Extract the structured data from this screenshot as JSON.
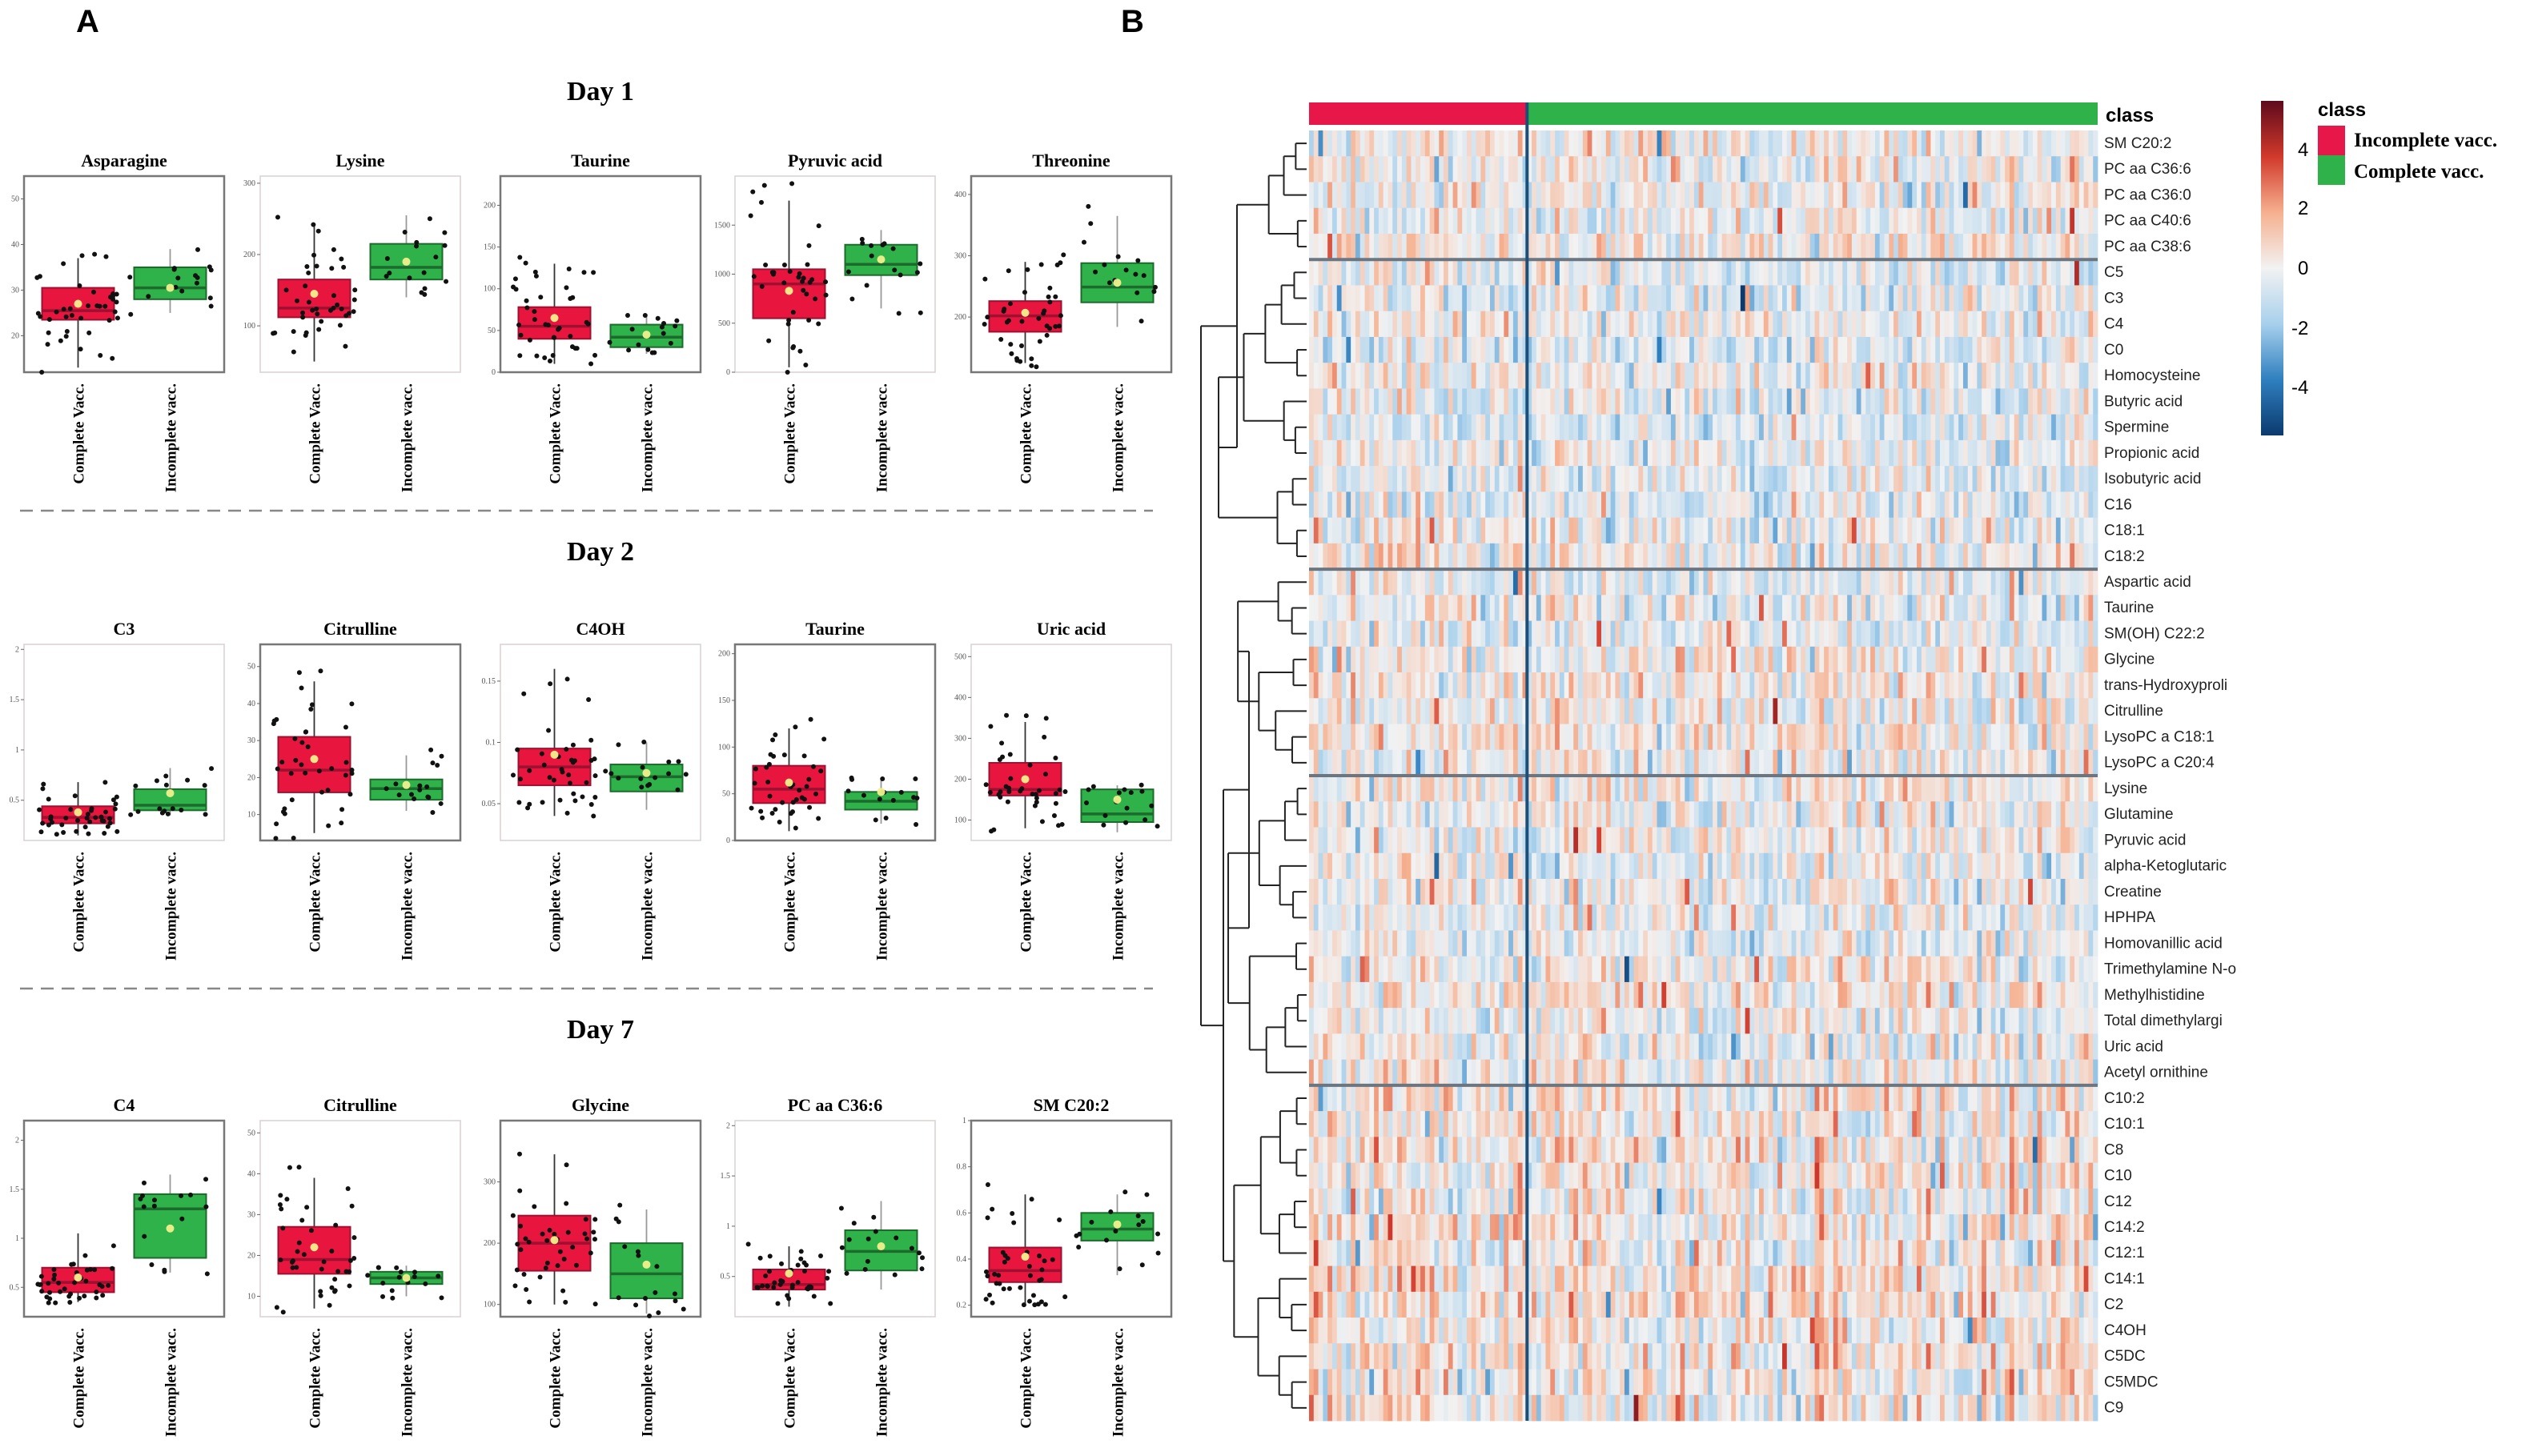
{
  "panel_labels": {
    "a": "A",
    "b": "B"
  },
  "chart_data": [
    {
      "type": "box",
      "panel": "A",
      "categories": [
        "Complete Vacc.",
        "Incomplete vacc."
      ],
      "colors": {
        "complete": "#e8163f",
        "complete_edge": "#9e1030",
        "incomplete": "#2fb24a",
        "incomplete_edge": "#1c6a2c",
        "mean": "#f3f08c",
        "point": "#111111"
      },
      "days": [
        {
          "title": "Day 1",
          "plots": [
            {
              "title": "Asparagine",
              "yticks": [
                20,
                30,
                40,
                50
              ],
              "ylim": [
                12,
                55
              ],
              "complete": {
                "lo": 13,
                "q1": 23.5,
                "median": 25.5,
                "q3": 30.5,
                "hi": 37,
                "mean": 27
              },
              "incomplete": {
                "lo": 25,
                "q1": 28,
                "median": 30.5,
                "q3": 35,
                "hi": 39,
                "mean": 30.5
              }
            },
            {
              "title": "Lysine",
              "yticks": [
                100,
                200,
                300
              ],
              "ylim": [
                35,
                310
              ],
              "complete": {
                "lo": 50,
                "q1": 112,
                "median": 125,
                "q3": 165,
                "hi": 240,
                "mean": 145
              },
              "incomplete": {
                "lo": 140,
                "q1": 165,
                "median": 182,
                "q3": 215,
                "hi": 255,
                "mean": 190
              }
            },
            {
              "title": "Taurine",
              "yticks": [
                0,
                50,
                100,
                150,
                200
              ],
              "ylim": [
                0,
                235
              ],
              "complete": {
                "lo": 10,
                "q1": 40,
                "median": 55,
                "q3": 78,
                "hi": 130,
                "mean": 65
              },
              "incomplete": {
                "lo": 22,
                "q1": 30,
                "median": 42,
                "q3": 57,
                "hi": 70,
                "mean": 45
              }
            },
            {
              "title": "Pyruvic acid",
              "yticks": [
                0,
                500,
                1000,
                1500
              ],
              "ylim": [
                0,
                2000
              ],
              "complete": {
                "lo": 50,
                "q1": 550,
                "median": 900,
                "q3": 1050,
                "hi": 1750,
                "mean": 830
              },
              "incomplete": {
                "lo": 650,
                "q1": 990,
                "median": 1100,
                "q3": 1300,
                "hi": 1450,
                "mean": 1150
              }
            },
            {
              "title": "Threonine",
              "yticks": [
                200,
                300,
                400
              ],
              "ylim": [
                110,
                430
              ],
              "complete": {
                "lo": 125,
                "q1": 176,
                "median": 202,
                "q3": 226,
                "hi": 290,
                "mean": 207
              },
              "incomplete": {
                "lo": 184,
                "q1": 224,
                "median": 249,
                "q3": 288,
                "hi": 365,
                "mean": 256
              }
            }
          ]
        },
        {
          "title": "Day 2",
          "plots": [
            {
              "title": "C3",
              "yticks": [
                0.5,
                1.0,
                1.5,
                2.0
              ],
              "ylim": [
                0.1,
                2.05
              ],
              "complete": {
                "lo": 0.15,
                "q1": 0.27,
                "median": 0.33,
                "q3": 0.44,
                "hi": 0.68,
                "mean": 0.38
              },
              "incomplete": {
                "lo": 0.35,
                "q1": 0.4,
                "median": 0.45,
                "q3": 0.61,
                "hi": 0.82,
                "mean": 0.57
              }
            },
            {
              "title": "Citrulline",
              "yticks": [
                10,
                20,
                30,
                40,
                50
              ],
              "ylim": [
                3,
                56
              ],
              "complete": {
                "lo": 5,
                "q1": 16,
                "median": 22,
                "q3": 31,
                "hi": 46,
                "mean": 25
              },
              "incomplete": {
                "lo": 11,
                "q1": 14,
                "median": 17,
                "q3": 19.5,
                "hi": 26,
                "mean": 18
              }
            },
            {
              "title": "C4OH",
              "yticks": [
                0.05,
                0.1,
                0.15
              ],
              "ylim": [
                0.02,
                0.18
              ],
              "complete": {
                "lo": 0.04,
                "q1": 0.065,
                "median": 0.08,
                "q3": 0.095,
                "hi": 0.16,
                "mean": 0.09
              },
              "incomplete": {
                "lo": 0.045,
                "q1": 0.06,
                "median": 0.072,
                "q3": 0.082,
                "hi": 0.1,
                "mean": 0.075
              }
            },
            {
              "title": "Taurine",
              "yticks": [
                0,
                50,
                100,
                150,
                200
              ],
              "ylim": [
                0,
                210
              ],
              "complete": {
                "lo": 10,
                "q1": 40,
                "median": 55,
                "q3": 80,
                "hi": 120,
                "mean": 62
              },
              "incomplete": {
                "lo": 18,
                "q1": 33,
                "median": 42,
                "q3": 52,
                "hi": 65,
                "mean": 52
              }
            },
            {
              "title": "Uric acid",
              "yticks": [
                100,
                200,
                300,
                400,
                500
              ],
              "ylim": [
                50,
                530
              ],
              "complete": {
                "lo": 80,
                "q1": 160,
                "median": 175,
                "q3": 240,
                "hi": 340,
                "mean": 200
              },
              "incomplete": {
                "lo": 70,
                "q1": 95,
                "median": 115,
                "q3": 175,
                "hi": 185,
                "mean": 150
              }
            }
          ]
        },
        {
          "title": "Day 7",
          "plots": [
            {
              "title": "C4",
              "yticks": [
                0.5,
                1.0,
                1.5,
                2.0
              ],
              "ylim": [
                0.2,
                2.2
              ],
              "complete": {
                "lo": 0.35,
                "q1": 0.45,
                "median": 0.55,
                "q3": 0.7,
                "hi": 1.05,
                "mean": 0.6
              },
              "incomplete": {
                "lo": 0.65,
                "q1": 0.8,
                "median": 1.3,
                "q3": 1.45,
                "hi": 1.65,
                "mean": 1.1
              }
            },
            {
              "title": "Citrulline",
              "yticks": [
                10,
                20,
                30,
                40,
                50
              ],
              "ylim": [
                5,
                53
              ],
              "complete": {
                "lo": 7,
                "q1": 15.5,
                "median": 19,
                "q3": 27,
                "hi": 39,
                "mean": 22
              },
              "incomplete": {
                "lo": 10,
                "q1": 13,
                "median": 14.5,
                "q3": 16,
                "hi": 17.5,
                "mean": 14.5
              }
            },
            {
              "title": "Glycine",
              "yticks": [
                100,
                200,
                300
              ],
              "ylim": [
                80,
                400
              ],
              "complete": {
                "lo": 100,
                "q1": 155,
                "median": 200,
                "q3": 245,
                "hi": 345,
                "mean": 205
              },
              "incomplete": {
                "lo": 85,
                "q1": 110,
                "median": 150,
                "q3": 200,
                "hi": 255,
                "mean": 165
              }
            },
            {
              "title": "PC aa C36:6",
              "yticks": [
                0.5,
                1.0,
                1.5,
                2.0
              ],
              "ylim": [
                0.1,
                2.05
              ],
              "complete": {
                "lo": 0.2,
                "q1": 0.37,
                "median": 0.42,
                "q3": 0.57,
                "hi": 0.8,
                "mean": 0.53
              },
              "incomplete": {
                "lo": 0.37,
                "q1": 0.56,
                "median": 0.75,
                "q3": 0.96,
                "hi": 1.25,
                "mean": 0.8
              }
            },
            {
              "title": "SM C20:2",
              "yticks": [
                0.2,
                0.4,
                0.6,
                0.8,
                1.0
              ],
              "ylim": [
                0.15,
                1.0
              ],
              "complete": {
                "lo": 0.2,
                "q1": 0.3,
                "median": 0.35,
                "q3": 0.45,
                "hi": 0.68,
                "mean": 0.41
              },
              "incomplete": {
                "lo": 0.33,
                "q1": 0.48,
                "median": 0.53,
                "q3": 0.6,
                "hi": 0.68,
                "mean": 0.55
              }
            }
          ]
        }
      ]
    },
    {
      "type": "heatmap",
      "panel": "B",
      "annotation_label": "class",
      "rows": [
        "SM C20:2",
        "PC aa C36:6",
        "PC aa C36:0",
        "PC aa C40:6",
        "PC aa C38:6",
        "C5",
        "C3",
        "C4",
        "C0",
        "Homocysteine",
        "Butyric acid",
        "Spermine",
        "Propionic acid",
        "Isobutyric acid",
        "C16",
        "C18:1",
        "C18:2",
        "Aspartic acid",
        "Taurine",
        "SM(OH) C22:2",
        "Glycine",
        "trans-Hydroxyproli",
        "Citrulline",
        "LysoPC a C18:1",
        "LysoPC a C20:4",
        "Lysine",
        "Glutamine",
        "Pyruvic acid",
        "alpha-Ketoglutaric",
        "Creatine",
        "HPHPA",
        "Homovanillic acid",
        "Trimethylamine N-o",
        "Methylhistidine",
        "Total dimethylargi",
        "Uric acid",
        "Acetyl ornithine",
        "C10:2",
        "C10:1",
        "C8",
        "C10",
        "C12",
        "C14:2",
        "C12:1",
        "C14:1",
        "C2",
        "C4OH",
        "C5DC",
        "C5MDC",
        "C9"
      ],
      "row_clusters": [
        5,
        12,
        8,
        12,
        13
      ],
      "column_classes": [
        {
          "name": "Incomplete vacc.",
          "color": "#e8174a",
          "count": 47
        },
        {
          "name": "Complete vacc.",
          "color": "#2fb24a",
          "count": 123
        }
      ],
      "colorbar": {
        "ticks": [
          "4",
          "2",
          "0",
          "-2",
          "-4"
        ],
        "range": [
          -5,
          5
        ],
        "colors": [
          "#0b3a6e",
          "#2f7fbf",
          "#a8d0ec",
          "#f2f2f2",
          "#f6b08f",
          "#d1392b",
          "#5e0a1c"
        ]
      },
      "legend": {
        "title": "class",
        "items": [
          {
            "label": "Incomplete vacc.",
            "color": "#e8174a"
          },
          {
            "label": "Complete vacc.",
            "color": "#2fb24a"
          }
        ]
      }
    }
  ]
}
